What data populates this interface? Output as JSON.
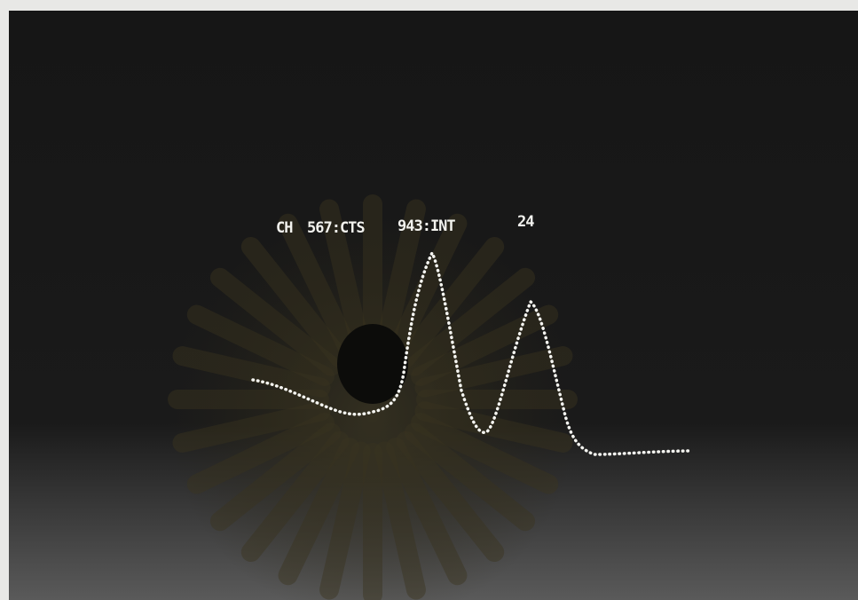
{
  "display": {
    "channel_label": "CH",
    "counts": "567:CTS",
    "integral": "943:INT",
    "marker": "24"
  }
}
